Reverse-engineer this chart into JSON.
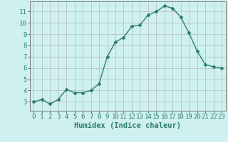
{
  "x": [
    0,
    1,
    2,
    3,
    4,
    5,
    6,
    7,
    8,
    9,
    10,
    11,
    12,
    13,
    14,
    15,
    16,
    17,
    18,
    19,
    20,
    21,
    22,
    23
  ],
  "y": [
    3.0,
    3.2,
    2.8,
    3.2,
    4.1,
    3.8,
    3.8,
    4.0,
    4.6,
    7.0,
    8.3,
    8.7,
    9.7,
    9.8,
    10.7,
    11.0,
    11.5,
    11.3,
    10.5,
    9.1,
    7.5,
    6.3,
    6.1,
    6.0
  ],
  "line_color": "#2e7d6e",
  "marker": "D",
  "marker_size": 2.5,
  "line_width": 1.0,
  "bg_color": "#cff0f0",
  "grid_color": "#b8b8b8",
  "xlabel": "Humidex (Indice chaleur)",
  "xlim": [
    -0.5,
    23.5
  ],
  "ylim": [
    2.2,
    11.9
  ],
  "yticks": [
    3,
    4,
    5,
    6,
    7,
    8,
    9,
    10,
    11
  ],
  "xticks": [
    0,
    1,
    2,
    3,
    4,
    5,
    6,
    7,
    8,
    9,
    10,
    11,
    12,
    13,
    14,
    15,
    16,
    17,
    18,
    19,
    20,
    21,
    22,
    23
  ],
  "xlabel_fontsize": 7.5,
  "tick_fontsize": 6.5
}
